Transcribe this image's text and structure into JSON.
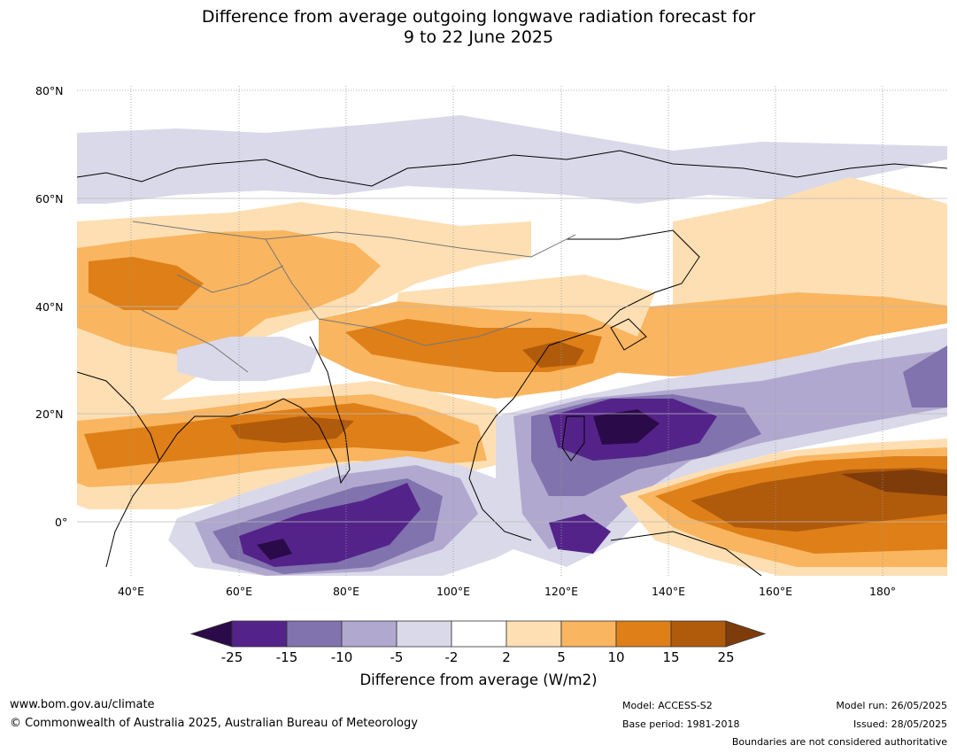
{
  "title_line1": "Difference from average outgoing longwave radiation forecast for",
  "title_line2": "9 to 22 June 2025",
  "map": {
    "lat_labels": [
      "80°N",
      "60°N",
      "40°N",
      "20°N",
      "0°"
    ],
    "lon_labels": [
      "40°E",
      "60°E",
      "80°E",
      "100°E",
      "120°E",
      "140°E",
      "160°E",
      "180°"
    ]
  },
  "colorbar": {
    "ticks": [
      "-25",
      "-15",
      "-10",
      "-5",
      "-2",
      "2",
      "5",
      "10",
      "15",
      "25"
    ],
    "colors": [
      "#2b0a49",
      "#54238a",
      "#8173ad",
      "#b0a8cf",
      "#d9d9ea",
      "#ffffff",
      "#fedfb3",
      "#f9b560",
      "#de7f18",
      "#b05a0b",
      "#7f3c0b"
    ],
    "title": "Difference from average (W/m2)"
  },
  "footer": {
    "website": "www.bom.gov.au/climate",
    "copyright": "© Commonwealth of Australia 2025, Australian Bureau of Meteorology",
    "model": "Model: ACCESS-S2",
    "base_period": "Base period: 1981-2018",
    "model_run": "Model run: 26/05/2025",
    "issued": "Issued: 28/05/2025",
    "disclaimer": "Boundaries are not considered authoritative"
  }
}
